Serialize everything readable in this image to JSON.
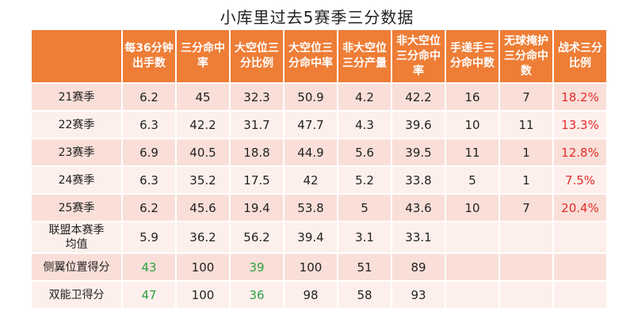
{
  "title": "小库里过去5赛季三分数据",
  "colors": {
    "header_bg": "#ee7d36",
    "highlight_red": "#e52a2a",
    "highlight_green": "#2f9e3f"
  },
  "table": {
    "headers": [
      "",
      "每36分钟出手数",
      "三分命中率",
      "大空位三分比例",
      "大空位三分命中率",
      "非大空位三分产量",
      "非大空位三分命中率",
      "手递手三分命中数",
      "无球掩护三分命中数",
      "战术三分比例"
    ],
    "rows": [
      [
        "21赛季",
        "6.2",
        "45",
        "32.3",
        "50.9",
        "4.2",
        "42.2",
        "16",
        "7",
        "18.2%"
      ],
      [
        "22赛季",
        "6.3",
        "42.2",
        "31.7",
        "47.7",
        "4.3",
        "39.6",
        "10",
        "11",
        "13.3%"
      ],
      [
        "23赛季",
        "6.9",
        "40.5",
        "18.8",
        "44.9",
        "5.6",
        "39.5",
        "11",
        "1",
        "12.8%"
      ],
      [
        "24赛季",
        "6.3",
        "35.2",
        "17.5",
        "42",
        "5.2",
        "33.8",
        "5",
        "1",
        "7.5%"
      ],
      [
        "25赛季",
        "6.2",
        "45.6",
        "19.4",
        "53.8",
        "5",
        "43.6",
        "10",
        "7",
        "20.4%"
      ],
      [
        "联盟本赛季均值",
        "5.9",
        "36.2",
        "56.2",
        "39.4",
        "3.1",
        "33.1",
        "",
        "",
        ""
      ],
      [
        "侧翼位置得分",
        "43",
        "100",
        "39",
        "100",
        "51",
        "89",
        "",
        "",
        ""
      ],
      [
        "双能卫得分",
        "47",
        "100",
        "36",
        "98",
        "58",
        "93",
        "",
        "",
        ""
      ]
    ]
  }
}
